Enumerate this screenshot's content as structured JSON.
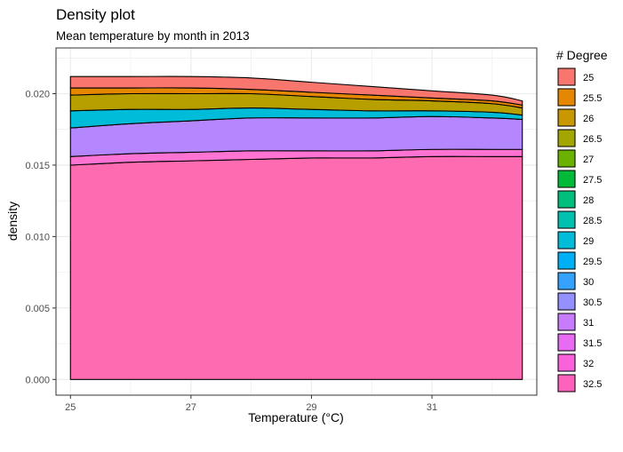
{
  "chart_data": {
    "type": "area",
    "title": "Density plot",
    "subtitle": "Mean temperature by month in 2013",
    "xlabel": "Temperature (°C)",
    "ylabel": "density",
    "xlim": [
      24.76,
      32.74
    ],
    "ylim": [
      -0.0011,
      0.0232
    ],
    "x_ticks": [
      25,
      27,
      29,
      31
    ],
    "x_tick_labels": [
      "25",
      "27",
      "29",
      "31"
    ],
    "y_ticks": [
      0,
      0.005,
      0.01,
      0.015,
      0.02
    ],
    "y_tick_labels": [
      "0.000",
      "0.005",
      "0.010",
      "0.015",
      "0.020"
    ],
    "grid": true,
    "stacked": true,
    "legend_title": "# Degree",
    "legend_position": "right",
    "x": [
      25,
      26,
      27,
      28,
      29,
      30,
      31,
      32,
      32.5
    ],
    "series": [
      {
        "name": "32.5",
        "color": "#FF6BB1",
        "values": [
          0.015,
          0.0152,
          0.0153,
          0.0154,
          0.0155,
          0.0155,
          0.0156,
          0.0156,
          0.0156
        ]
      },
      {
        "name": "32",
        "color": "#FF73D3",
        "values": [
          0.0006,
          0.0006,
          0.0006,
          0.0006,
          0.0005,
          0.0005,
          0.0005,
          0.0005,
          0.0005
        ]
      },
      {
        "name": "31.5",
        "color": "#F27BEA",
        "values": [
          0.0,
          0.0,
          0.0,
          0.0,
          0.0,
          0.0,
          0.0,
          0.0,
          0.0
        ]
      },
      {
        "name": "31",
        "color": "#B487FF",
        "values": [
          0.002,
          0.0021,
          0.0022,
          0.0023,
          0.0023,
          0.0023,
          0.0023,
          0.0022,
          0.0021
        ]
      },
      {
        "name": "30.5",
        "color": "#8F91FF",
        "values": [
          0.0,
          0.0,
          0.0,
          0.0,
          0.0,
          0.0,
          0.0,
          0.0,
          0.0
        ]
      },
      {
        "name": "30",
        "color": "#00B0F6",
        "values": [
          0.0,
          0.0,
          0.0,
          0.0,
          0.0,
          0.0,
          0.0,
          0.0,
          0.0
        ]
      },
      {
        "name": "29.5",
        "color": "#00BCD8",
        "values": [
          0.0012,
          0.001,
          0.0008,
          0.0007,
          0.0006,
          0.0005,
          0.0004,
          0.0004,
          0.0003
        ]
      },
      {
        "name": "29",
        "color": "#00C1A9",
        "values": [
          0.0,
          0.0,
          0.0,
          0.0,
          0.0,
          0.0,
          0.0,
          0.0,
          0.0
        ]
      },
      {
        "name": "28.5",
        "color": "#00BF7D",
        "values": [
          0.0,
          0.0,
          0.0,
          0.0,
          0.0,
          0.0,
          0.0,
          0.0,
          0.0
        ]
      },
      {
        "name": "28",
        "color": "#00BA38",
        "values": [
          0.0,
          0.0,
          0.0,
          0.0,
          0.0,
          0.0,
          0.0,
          0.0,
          0.0
        ]
      },
      {
        "name": "27.5",
        "color": "#53B400",
        "values": [
          0.0,
          0.0,
          0.0,
          0.0,
          0.0,
          0.0,
          0.0,
          0.0,
          0.0
        ]
      },
      {
        "name": "27",
        "color": "#A3A500",
        "values": [
          0.0,
          0.0,
          0.0,
          0.0,
          0.0,
          0.0,
          0.0,
          0.0,
          0.0
        ]
      },
      {
        "name": "26.5",
        "color": "#B79F00",
        "values": [
          0.0011,
          0.0011,
          0.0011,
          0.001,
          0.0009,
          0.0008,
          0.0007,
          0.0006,
          0.0005
        ]
      },
      {
        "name": "26",
        "color": "#DE8C00",
        "values": [
          0.0,
          0.0,
          0.0,
          0.0,
          0.0,
          0.0,
          0.0,
          0.0,
          0.0
        ]
      },
      {
        "name": "25.5",
        "color": "#E58700",
        "values": [
          0.0005,
          0.0004,
          0.0004,
          0.0003,
          0.0003,
          0.0003,
          0.0002,
          0.0002,
          0.0002
        ]
      },
      {
        "name": "25",
        "color": "#F8766D",
        "values": [
          0.0008,
          0.0008,
          0.0008,
          0.0008,
          0.0007,
          0.0006,
          0.0005,
          0.0004,
          0.0003
        ]
      }
    ],
    "legend_entries": [
      {
        "label": "25",
        "color": "#F8766D"
      },
      {
        "label": "25.5",
        "color": "#E58700"
      },
      {
        "label": "26",
        "color": "#C99800"
      },
      {
        "label": "26.5",
        "color": "#A3A500"
      },
      {
        "label": "27",
        "color": "#6BB100"
      },
      {
        "label": "27.5",
        "color": "#00BA38"
      },
      {
        "label": "28",
        "color": "#00BF7D"
      },
      {
        "label": "28.5",
        "color": "#00C0AF"
      },
      {
        "label": "29",
        "color": "#00BCD8"
      },
      {
        "label": "29.5",
        "color": "#00B0F6"
      },
      {
        "label": "30",
        "color": "#35A2FF"
      },
      {
        "label": "30.5",
        "color": "#9590FF"
      },
      {
        "label": "31",
        "color": "#C77CFF"
      },
      {
        "label": "31.5",
        "color": "#E76BF3"
      },
      {
        "label": "32",
        "color": "#FA62DB"
      },
      {
        "label": "32.5",
        "color": "#FF62BC"
      }
    ]
  }
}
